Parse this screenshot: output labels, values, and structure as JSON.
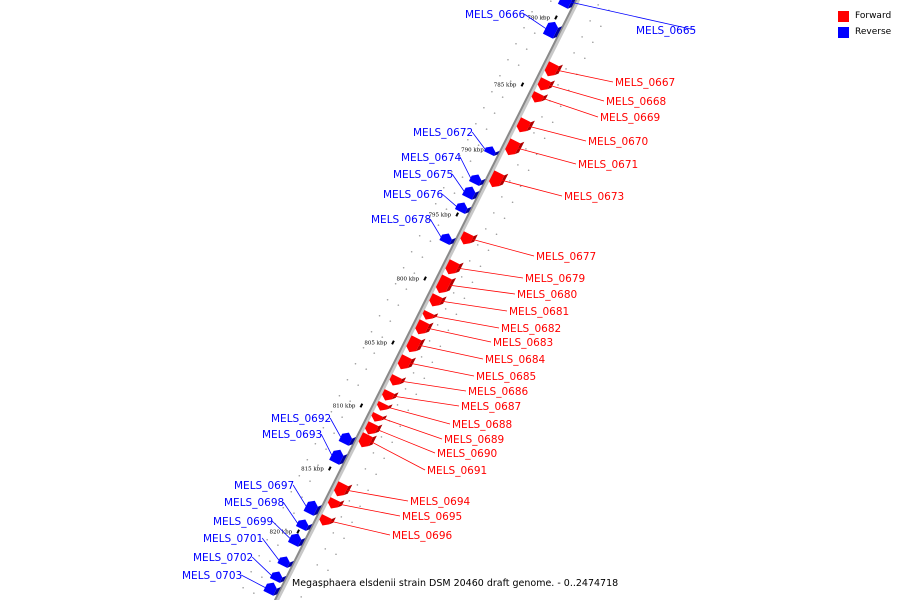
{
  "legend": {
    "forward": {
      "label": "Forward",
      "color": "#ff0000"
    },
    "reverse": {
      "label": "Reverse",
      "color": "#0000ff"
    }
  },
  "caption": "Megasphaera elsdenii strain DSM 20460 draft genome. - 0..2474718",
  "axis": {
    "ticks": [
      {
        "label": "780 kbp",
        "kbp": 780
      },
      {
        "label": "785 kbp",
        "kbp": 785
      },
      {
        "label": "790 kbp",
        "kbp": 790
      },
      {
        "label": "795 kbp",
        "kbp": 795
      },
      {
        "label": "800 kbp",
        "kbp": 800
      },
      {
        "label": "805 kbp",
        "kbp": 805
      },
      {
        "label": "810 kbp",
        "kbp": 810
      },
      {
        "label": "815 kbp",
        "kbp": 815
      },
      {
        "label": "820 kbp",
        "kbp": 820
      }
    ]
  },
  "genes": [
    {
      "name": "MELS_0666",
      "strand": "reverse"
    },
    {
      "name": "MELS_0665",
      "strand": "reverse"
    },
    {
      "name": "MELS_0667",
      "strand": "forward"
    },
    {
      "name": "MELS_0668",
      "strand": "forward"
    },
    {
      "name": "MELS_0669",
      "strand": "forward"
    },
    {
      "name": "MELS_0672",
      "strand": "reverse"
    },
    {
      "name": "MELS_0670",
      "strand": "forward"
    },
    {
      "name": "MELS_0674",
      "strand": "reverse"
    },
    {
      "name": "MELS_0671",
      "strand": "forward"
    },
    {
      "name": "MELS_0675",
      "strand": "reverse"
    },
    {
      "name": "MELS_0676",
      "strand": "reverse"
    },
    {
      "name": "MELS_0673",
      "strand": "forward"
    },
    {
      "name": "MELS_0678",
      "strand": "reverse"
    },
    {
      "name": "MELS_0677",
      "strand": "forward"
    },
    {
      "name": "MELS_0679",
      "strand": "forward"
    },
    {
      "name": "MELS_0680",
      "strand": "forward"
    },
    {
      "name": "MELS_0681",
      "strand": "forward"
    },
    {
      "name": "MELS_0682",
      "strand": "forward"
    },
    {
      "name": "MELS_0683",
      "strand": "forward"
    },
    {
      "name": "MELS_0684",
      "strand": "forward"
    },
    {
      "name": "MELS_0685",
      "strand": "forward"
    },
    {
      "name": "MELS_0686",
      "strand": "forward"
    },
    {
      "name": "MELS_0687",
      "strand": "forward"
    },
    {
      "name": "MELS_0692",
      "strand": "reverse"
    },
    {
      "name": "MELS_0688",
      "strand": "forward"
    },
    {
      "name": "MELS_0693",
      "strand": "reverse"
    },
    {
      "name": "MELS_0689",
      "strand": "forward"
    },
    {
      "name": "MELS_0690",
      "strand": "forward"
    },
    {
      "name": "MELS_0691",
      "strand": "forward"
    },
    {
      "name": "MELS_0697",
      "strand": "reverse"
    },
    {
      "name": "MELS_0694",
      "strand": "forward"
    },
    {
      "name": "MELS_0698",
      "strand": "reverse"
    },
    {
      "name": "MELS_0695",
      "strand": "forward"
    },
    {
      "name": "MELS_0699",
      "strand": "reverse"
    },
    {
      "name": "MELS_0696",
      "strand": "forward"
    },
    {
      "name": "MELS_0701",
      "strand": "reverse"
    },
    {
      "name": "MELS_0702",
      "strand": "reverse"
    },
    {
      "name": "MELS_0703",
      "strand": "reverse"
    }
  ]
}
